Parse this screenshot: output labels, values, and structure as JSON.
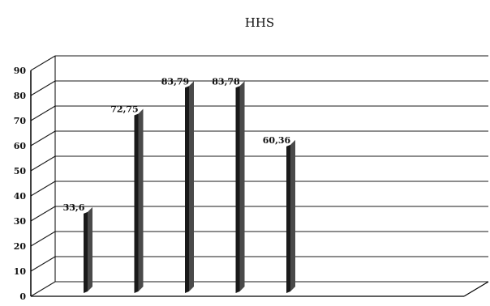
{
  "chart_data": {
    "type": "bar",
    "title": "HHS",
    "categories": [
      "",
      "",
      "",
      "",
      ""
    ],
    "values": [
      33.6,
      72.75,
      83.79,
      83.78,
      60.36
    ],
    "data_labels": [
      "33,6",
      "72,75",
      "83,79",
      "83,78",
      "60,36"
    ],
    "ylim": [
      0,
      90
    ],
    "yticks": [
      0,
      10,
      20,
      30,
      40,
      50,
      60,
      70,
      80,
      90
    ],
    "grid": true,
    "style": "3d",
    "colors": {
      "bar_face": "#1a1a1a",
      "bar_side": "#4a4a4a",
      "grid": "#1a1a1a",
      "axis": "#000000"
    }
  }
}
